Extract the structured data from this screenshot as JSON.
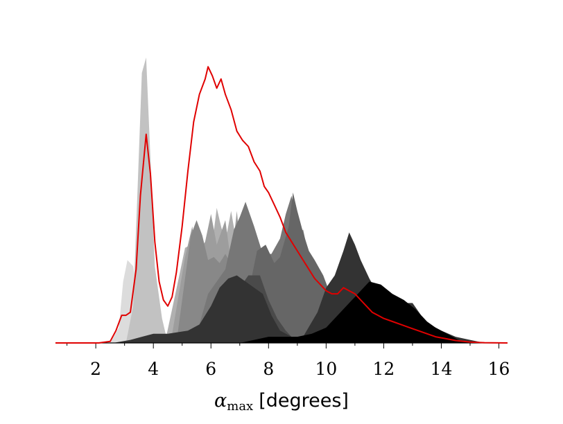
{
  "chart_data": {
    "type": "area",
    "xlabel": {
      "symbol": "α",
      "subscript": "max",
      "unit": "[degrees]"
    },
    "xlim": [
      0.6,
      16.3
    ],
    "ylim": [
      0,
      1.0
    ],
    "xticks": [
      2,
      4,
      6,
      8,
      10,
      12,
      14,
      16
    ],
    "grid": false,
    "series": [
      {
        "color": "#dcdcdc",
        "points": [
          [
            2.5,
            0
          ],
          [
            2.8,
            0.05
          ],
          [
            2.95,
            0.2
          ],
          [
            3.1,
            0.27
          ],
          [
            3.3,
            0.25
          ],
          [
            3.5,
            0.12
          ],
          [
            3.65,
            0.02
          ],
          [
            3.8,
            0
          ]
        ]
      },
      {
        "color": "#c2c2c2",
        "points": [
          [
            3.05,
            0
          ],
          [
            3.3,
            0.12
          ],
          [
            3.45,
            0.5
          ],
          [
            3.6,
            0.88
          ],
          [
            3.75,
            0.93
          ],
          [
            3.9,
            0.6
          ],
          [
            4.05,
            0.25
          ],
          [
            4.3,
            0.08
          ],
          [
            4.5,
            0
          ]
        ]
      },
      {
        "color": "#b0b0b0",
        "points": [
          [
            4.4,
            0
          ],
          [
            4.9,
            0.22
          ],
          [
            5.1,
            0.31
          ],
          [
            5.3,
            0.32
          ],
          [
            5.5,
            0.27
          ],
          [
            5.7,
            0.26
          ],
          [
            5.85,
            0.31
          ],
          [
            6.0,
            0.29
          ],
          [
            6.2,
            0.44
          ],
          [
            6.35,
            0.38
          ],
          [
            6.5,
            0.33
          ],
          [
            6.7,
            0.43
          ],
          [
            6.9,
            0.32
          ],
          [
            7.1,
            0.28
          ],
          [
            7.4,
            0.2
          ],
          [
            7.8,
            0.12
          ],
          [
            8.3,
            0.05
          ],
          [
            8.8,
            0
          ]
        ]
      },
      {
        "color": "#9d9d9d",
        "points": [
          [
            4.6,
            0
          ],
          [
            5.1,
            0.28
          ],
          [
            5.35,
            0.38
          ],
          [
            5.5,
            0.28
          ],
          [
            5.8,
            0.33
          ],
          [
            6.0,
            0.42
          ],
          [
            6.2,
            0.32
          ],
          [
            6.5,
            0.4
          ],
          [
            6.7,
            0.26
          ],
          [
            6.9,
            0.43
          ],
          [
            7.1,
            0.24
          ],
          [
            7.3,
            0.19
          ],
          [
            7.6,
            0.08
          ],
          [
            8.0,
            0
          ]
        ]
      },
      {
        "color": "#888888",
        "points": [
          [
            4.8,
            0
          ],
          [
            5.3,
            0.35
          ],
          [
            5.5,
            0.4
          ],
          [
            5.7,
            0.35
          ],
          [
            5.9,
            0.27
          ],
          [
            6.1,
            0.28
          ],
          [
            6.3,
            0.26
          ],
          [
            6.5,
            0.29
          ],
          [
            6.8,
            0.24
          ],
          [
            7.0,
            0.26
          ],
          [
            7.3,
            0.14
          ],
          [
            7.6,
            0.06
          ],
          [
            8.0,
            0
          ]
        ]
      },
      {
        "color": "#777777",
        "points": [
          [
            5.3,
            0
          ],
          [
            5.6,
            0.06
          ],
          [
            5.9,
            0.16
          ],
          [
            6.2,
            0.2
          ],
          [
            6.5,
            0.24
          ],
          [
            6.8,
            0.37
          ],
          [
            7.0,
            0.41
          ],
          [
            7.2,
            0.46
          ],
          [
            7.5,
            0.38
          ],
          [
            7.8,
            0.29
          ],
          [
            8.1,
            0.29
          ],
          [
            8.4,
            0.34
          ],
          [
            8.6,
            0.42
          ],
          [
            8.8,
            0.48
          ],
          [
            9.0,
            0.34
          ],
          [
            9.2,
            0.37
          ],
          [
            9.4,
            0.28
          ],
          [
            9.7,
            0.22
          ],
          [
            10.0,
            0.15
          ],
          [
            10.5,
            0.06
          ],
          [
            11.0,
            0
          ]
        ]
      },
      {
        "color": "#666666",
        "points": [
          [
            7.0,
            0
          ],
          [
            7.3,
            0.16
          ],
          [
            7.6,
            0.3
          ],
          [
            7.9,
            0.32
          ],
          [
            8.2,
            0.26
          ],
          [
            8.4,
            0.28
          ],
          [
            8.7,
            0.38
          ],
          [
            8.85,
            0.49
          ],
          [
            9.0,
            0.43
          ],
          [
            9.2,
            0.36
          ],
          [
            9.4,
            0.3
          ],
          [
            9.6,
            0.27
          ],
          [
            9.9,
            0.22
          ],
          [
            10.3,
            0.12
          ],
          [
            10.8,
            0.05
          ],
          [
            11.3,
            0
          ]
        ]
      },
      {
        "color": "#4a4a4a",
        "points": [
          [
            6.2,
            0
          ],
          [
            6.6,
            0.06
          ],
          [
            7.0,
            0.18
          ],
          [
            7.3,
            0.22
          ],
          [
            7.7,
            0.22
          ],
          [
            8.0,
            0.14
          ],
          [
            8.3,
            0.08
          ],
          [
            8.6,
            0.04
          ],
          [
            9.0,
            0
          ]
        ]
      },
      {
        "color": "#333333",
        "points": [
          [
            2.6,
            0
          ],
          [
            3.2,
            0.01
          ],
          [
            3.6,
            0.02
          ],
          [
            4.0,
            0.03
          ],
          [
            4.5,
            0.03
          ],
          [
            5.2,
            0.04
          ],
          [
            5.6,
            0.06
          ],
          [
            6.0,
            0.12
          ],
          [
            6.3,
            0.18
          ],
          [
            6.6,
            0.21
          ],
          [
            6.9,
            0.22
          ],
          [
            7.2,
            0.2
          ],
          [
            7.5,
            0.18
          ],
          [
            7.8,
            0.16
          ],
          [
            8.1,
            0.09
          ],
          [
            8.4,
            0.04
          ],
          [
            8.8,
            0.02
          ],
          [
            9.2,
            0.02
          ],
          [
            9.7,
            0.1
          ],
          [
            10.0,
            0.18
          ],
          [
            10.3,
            0.22
          ],
          [
            10.6,
            0.3
          ],
          [
            10.8,
            0.36
          ],
          [
            11.0,
            0.32
          ],
          [
            11.2,
            0.27
          ],
          [
            11.5,
            0.21
          ],
          [
            11.8,
            0.16
          ],
          [
            12.2,
            0.14
          ],
          [
            12.6,
            0.13
          ],
          [
            13.0,
            0.13
          ],
          [
            13.3,
            0.09
          ],
          [
            13.6,
            0.06
          ],
          [
            14.0,
            0.04
          ],
          [
            14.5,
            0.02
          ],
          [
            15.0,
            0.01
          ],
          [
            15.5,
            0
          ]
        ]
      },
      {
        "color": "#000000",
        "points": [
          [
            7.0,
            0
          ],
          [
            7.5,
            0.01
          ],
          [
            8.0,
            0.02
          ],
          [
            8.5,
            0.02
          ],
          [
            9.0,
            0.02
          ],
          [
            9.5,
            0.03
          ],
          [
            10.0,
            0.05
          ],
          [
            10.5,
            0.1
          ],
          [
            11.0,
            0.15
          ],
          [
            11.5,
            0.2
          ],
          [
            11.9,
            0.19
          ],
          [
            12.3,
            0.16
          ],
          [
            12.7,
            0.14
          ],
          [
            13.1,
            0.11
          ],
          [
            13.5,
            0.07
          ],
          [
            13.8,
            0.05
          ],
          [
            14.2,
            0.03
          ],
          [
            14.6,
            0.01
          ],
          [
            15.0,
            0
          ]
        ]
      }
    ],
    "line": {
      "color": "#e00000",
      "points": [
        [
          0.6,
          0
        ],
        [
          2.1,
          0
        ],
        [
          2.5,
          0.005
        ],
        [
          2.7,
          0.04
        ],
        [
          2.9,
          0.09
        ],
        [
          3.05,
          0.09
        ],
        [
          3.2,
          0.1
        ],
        [
          3.4,
          0.24
        ],
        [
          3.55,
          0.48
        ],
        [
          3.75,
          0.68
        ],
        [
          3.9,
          0.55
        ],
        [
          4.05,
          0.33
        ],
        [
          4.2,
          0.2
        ],
        [
          4.35,
          0.14
        ],
        [
          4.5,
          0.12
        ],
        [
          4.65,
          0.15
        ],
        [
          4.8,
          0.23
        ],
        [
          5.0,
          0.38
        ],
        [
          5.2,
          0.56
        ],
        [
          5.4,
          0.72
        ],
        [
          5.6,
          0.81
        ],
        [
          5.8,
          0.86
        ],
        [
          5.9,
          0.9
        ],
        [
          6.05,
          0.87
        ],
        [
          6.2,
          0.83
        ],
        [
          6.35,
          0.86
        ],
        [
          6.5,
          0.81
        ],
        [
          6.7,
          0.76
        ],
        [
          6.9,
          0.69
        ],
        [
          7.1,
          0.66
        ],
        [
          7.3,
          0.64
        ],
        [
          7.5,
          0.59
        ],
        [
          7.7,
          0.56
        ],
        [
          7.85,
          0.51
        ],
        [
          8.0,
          0.49
        ],
        [
          8.2,
          0.45
        ],
        [
          8.4,
          0.41
        ],
        [
          8.6,
          0.36
        ],
        [
          8.8,
          0.33
        ],
        [
          9.0,
          0.3
        ],
        [
          9.2,
          0.27
        ],
        [
          9.4,
          0.24
        ],
        [
          9.6,
          0.21
        ],
        [
          9.8,
          0.19
        ],
        [
          10.0,
          0.17
        ],
        [
          10.2,
          0.16
        ],
        [
          10.4,
          0.16
        ],
        [
          10.6,
          0.18
        ],
        [
          10.8,
          0.17
        ],
        [
          11.0,
          0.16
        ],
        [
          11.2,
          0.14
        ],
        [
          11.4,
          0.12
        ],
        [
          11.6,
          0.1
        ],
        [
          11.8,
          0.09
        ],
        [
          12.0,
          0.08
        ],
        [
          12.3,
          0.07
        ],
        [
          12.6,
          0.06
        ],
        [
          12.9,
          0.05
        ],
        [
          13.2,
          0.04
        ],
        [
          13.5,
          0.03
        ],
        [
          13.8,
          0.02
        ],
        [
          14.1,
          0.015
        ],
        [
          14.5,
          0.008
        ],
        [
          15.0,
          0.003
        ],
        [
          15.5,
          0.001
        ],
        [
          16.3,
          0
        ]
      ]
    }
  }
}
